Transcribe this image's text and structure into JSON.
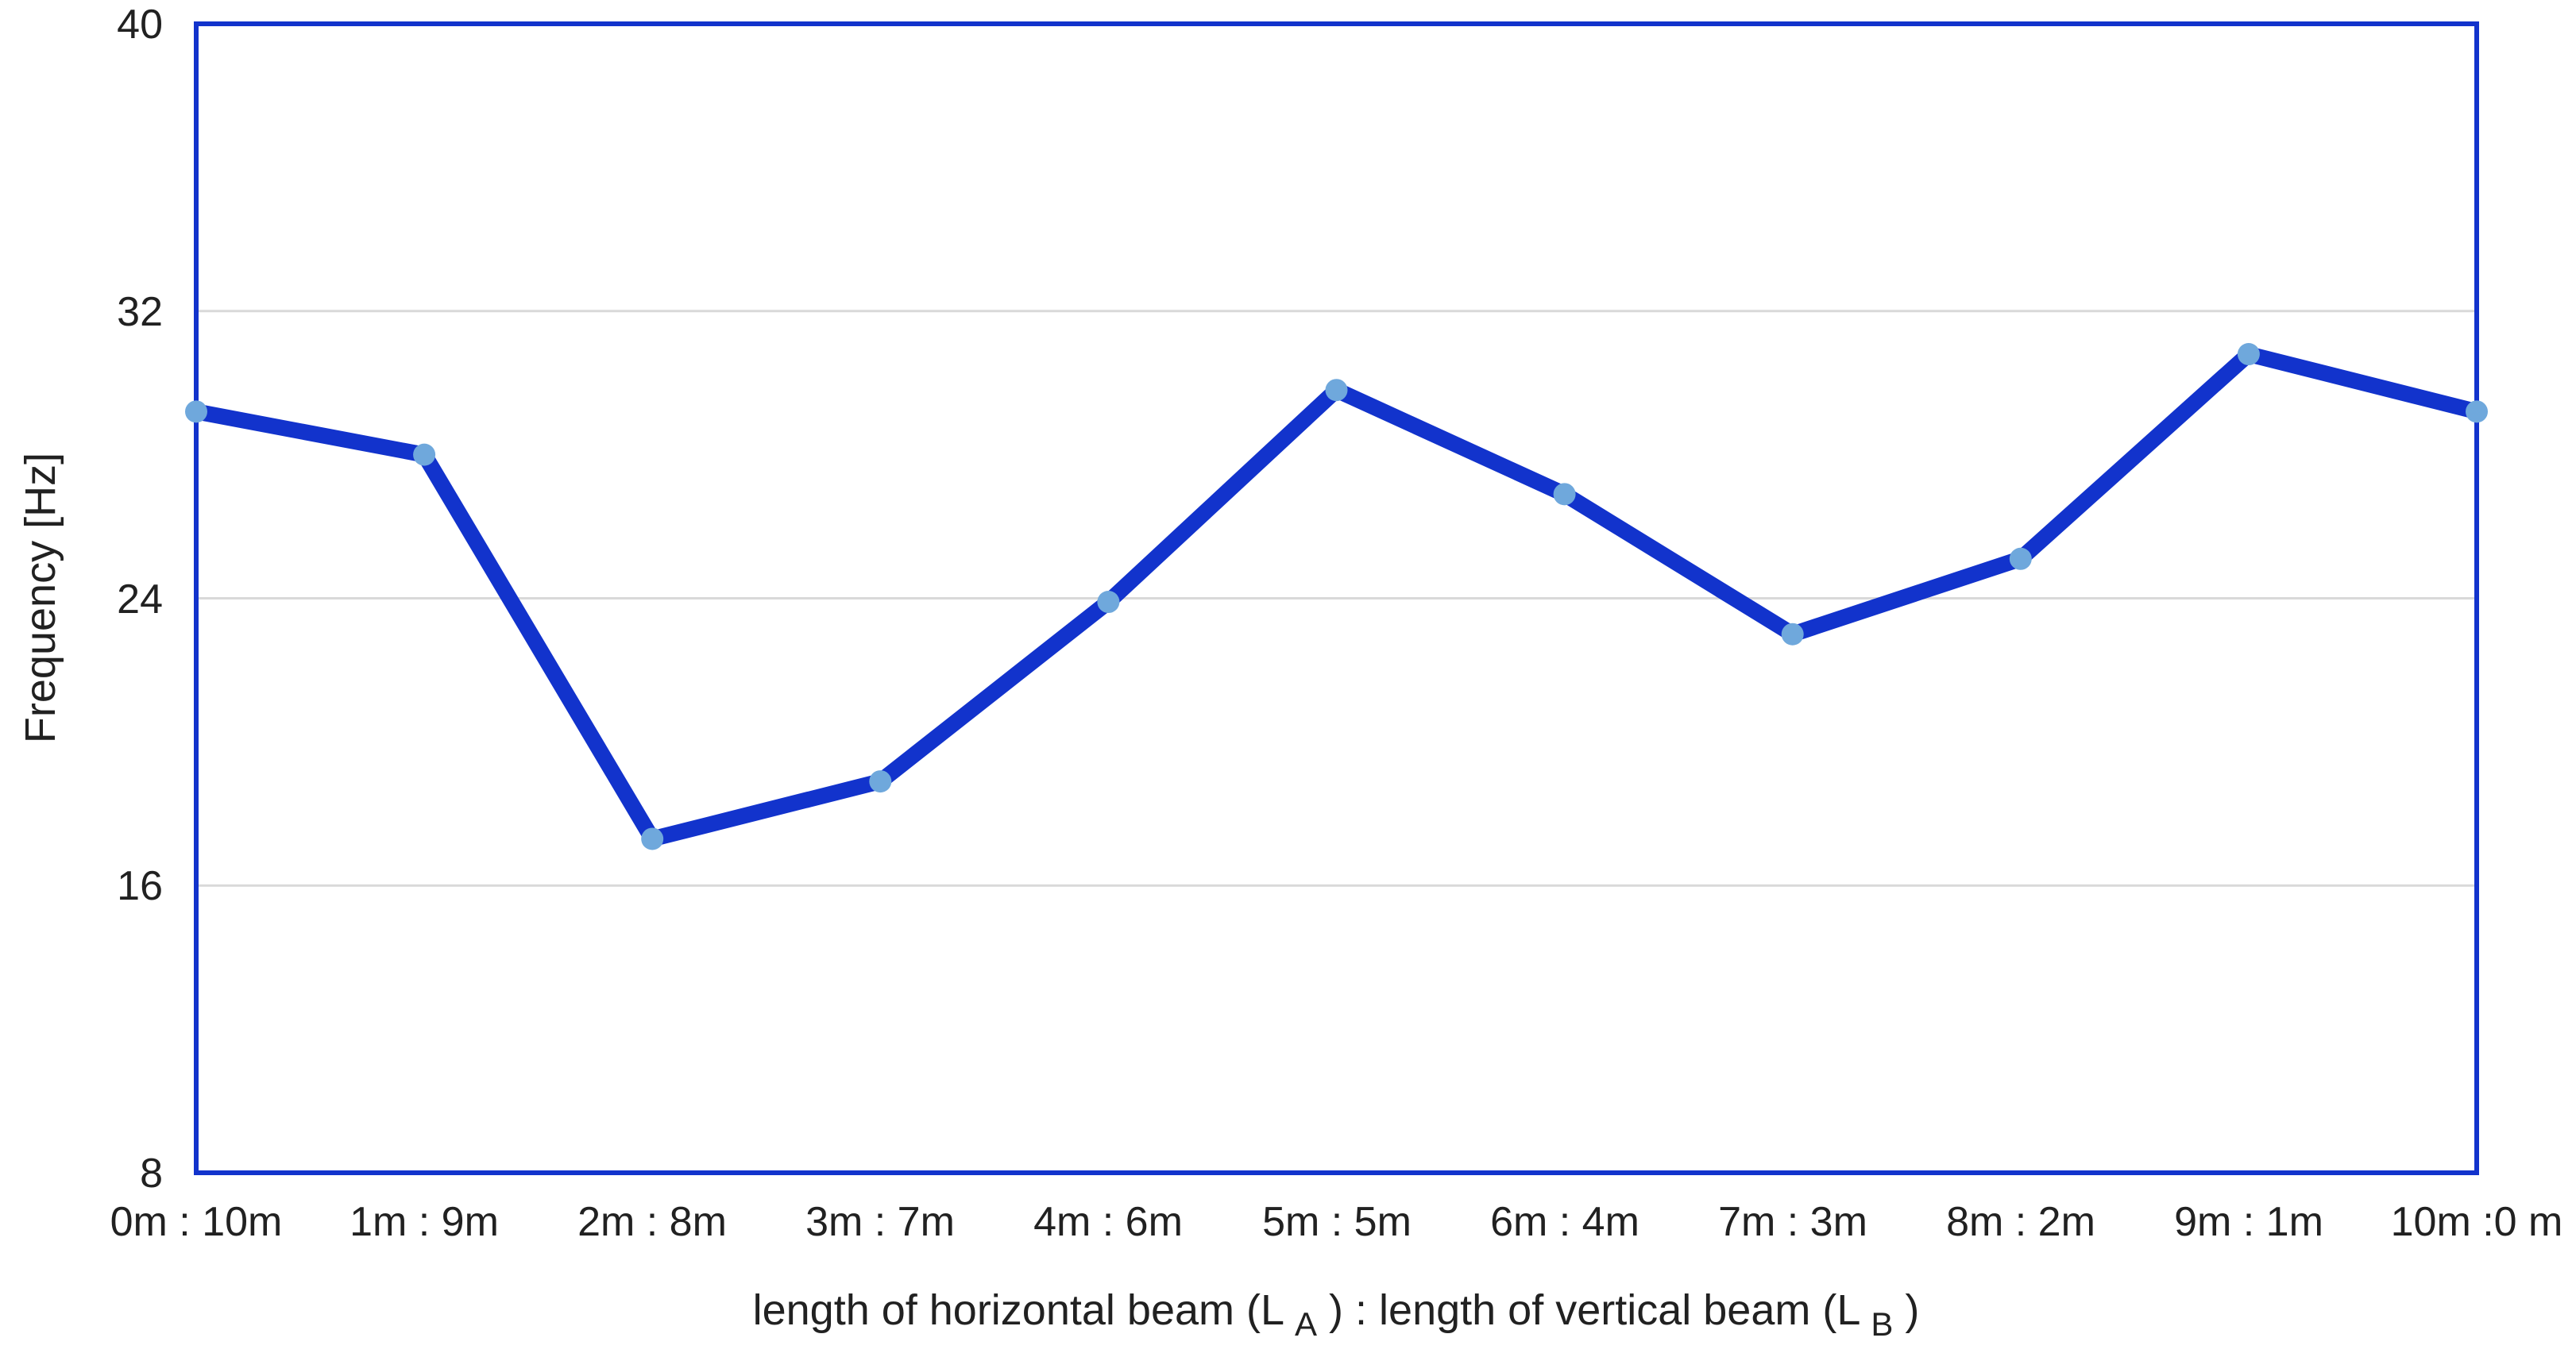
{
  "chart_data": {
    "type": "line",
    "title": "",
    "categories": [
      "0m : 10m",
      "1m : 9m",
      "2m : 8m",
      "3m : 7m",
      "4m : 6m",
      "5m : 5m",
      "6m : 4m",
      "7m : 3m",
      "8m : 2m",
      "9m : 1m",
      "10m :0 m"
    ],
    "series": [
      {
        "name": "Frequency",
        "values": [
          29.2,
          28.0,
          17.3,
          18.9,
          23.9,
          29.8,
          26.9,
          23.0,
          25.1,
          30.8,
          29.2
        ]
      }
    ],
    "xlabel": "length of horizontal beam (LA) : length of vertical beam (LB)",
    "xlabel_parts": [
      {
        "text": "length of horizontal beam (L",
        "sub": false
      },
      {
        "text": "A",
        "sub": true
      },
      {
        "text": ") : length of vertical beam (L",
        "sub": false
      },
      {
        "text": "B",
        "sub": true
      },
      {
        "text": ")",
        "sub": false
      }
    ],
    "ylabel": "Frequency [Hz]",
    "ylim": [
      8,
      40
    ],
    "yticks": [
      8,
      16,
      24,
      32,
      40
    ],
    "gridlines": [
      16,
      24,
      32
    ],
    "grid": "horizontal-only",
    "legend": "none",
    "colors": {
      "line": "#1233cc",
      "marker": "#6fa8dc",
      "plot_border": "#1233cc",
      "gridline": "#d9d9d9",
      "text": "#212121",
      "background": "#ffffff"
    }
  }
}
